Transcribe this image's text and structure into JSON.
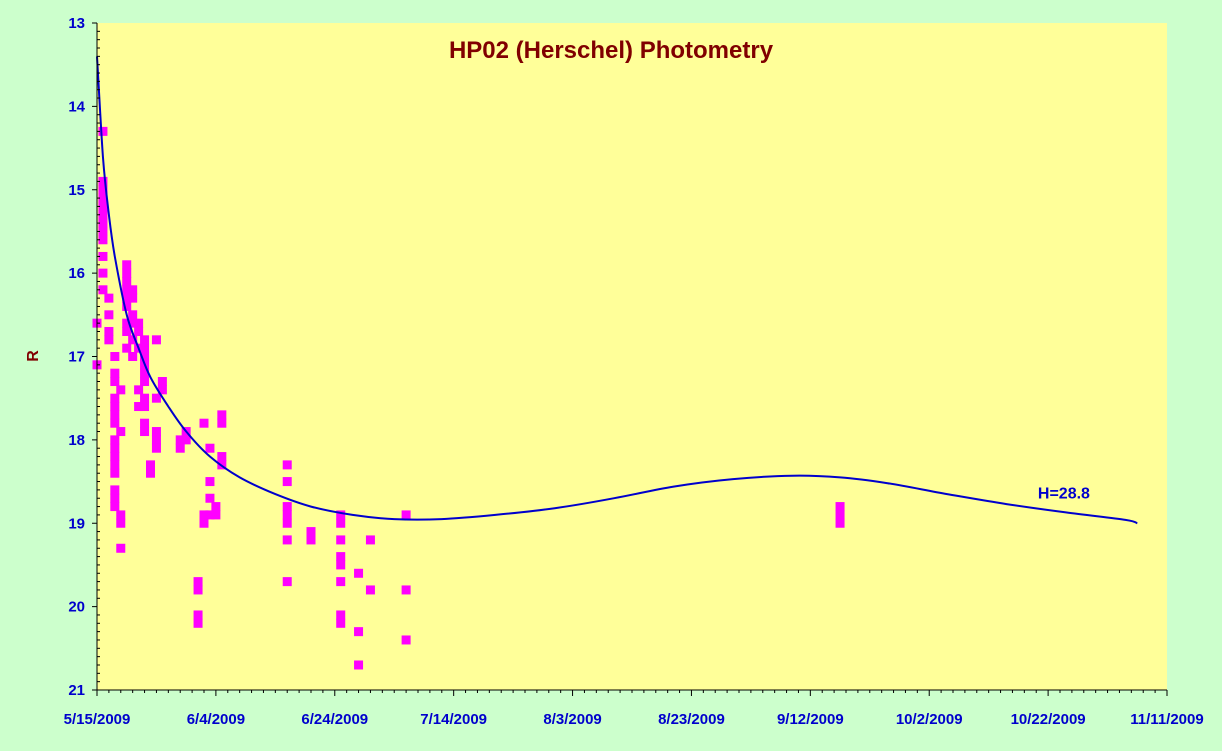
{
  "chart_data": {
    "type": "scatter",
    "title": "HP02 (Herschel) Photometry",
    "ylabel": "R",
    "xlabel": "",
    "x_type": "date",
    "xlim": [
      "2009-05-15",
      "2009-11-11"
    ],
    "x_tick_step_days": 20,
    "x_ticks": [
      "5/15/2009",
      "6/4/2009",
      "6/24/2009",
      "7/14/2009",
      "8/3/2009",
      "8/23/2009",
      "9/12/2009",
      "10/2/2009",
      "10/22/2009",
      "11/11/2009"
    ],
    "ylim": [
      13,
      21
    ],
    "y_inverted": true,
    "y_ticks": [
      "13",
      "14",
      "15",
      "16",
      "17",
      "18",
      "19",
      "20",
      "21"
    ],
    "grid": false,
    "colors": {
      "background": "#ccffcc",
      "plot_area": "#ffff99",
      "points": "#ff00ff",
      "fit_line": "#0000cc",
      "title": "#800000",
      "ylabel": "#800000",
      "tick_labels": "#0000cc"
    },
    "series": [
      {
        "type": "scatter",
        "points": [
          {
            "x": "2009-05-15",
            "y": 16.6
          },
          {
            "x": "2009-05-15",
            "y": 17.1
          },
          {
            "x": "2009-05-16",
            "y": 14.3
          },
          {
            "x": "2009-05-16",
            "y": 14.9
          },
          {
            "x": "2009-05-16",
            "y": 15.0
          },
          {
            "x": "2009-05-16",
            "y": 15.1
          },
          {
            "x": "2009-05-16",
            "y": 15.2
          },
          {
            "x": "2009-05-16",
            "y": 15.3
          },
          {
            "x": "2009-05-16",
            "y": 15.4
          },
          {
            "x": "2009-05-16",
            "y": 15.5
          },
          {
            "x": "2009-05-16",
            "y": 15.6
          },
          {
            "x": "2009-05-16",
            "y": 15.8
          },
          {
            "x": "2009-05-16",
            "y": 16.0
          },
          {
            "x": "2009-05-16",
            "y": 16.2
          },
          {
            "x": "2009-05-17",
            "y": 16.3
          },
          {
            "x": "2009-05-17",
            "y": 16.5
          },
          {
            "x": "2009-05-17",
            "y": 16.7
          },
          {
            "x": "2009-05-17",
            "y": 16.8
          },
          {
            "x": "2009-05-18",
            "y": 17.0
          },
          {
            "x": "2009-05-18",
            "y": 17.2
          },
          {
            "x": "2009-05-18",
            "y": 17.3
          },
          {
            "x": "2009-05-18",
            "y": 17.5
          },
          {
            "x": "2009-05-18",
            "y": 17.6
          },
          {
            "x": "2009-05-18",
            "y": 17.7
          },
          {
            "x": "2009-05-18",
            "y": 17.8
          },
          {
            "x": "2009-05-18",
            "y": 18.0
          },
          {
            "x": "2009-05-18",
            "y": 18.1
          },
          {
            "x": "2009-05-18",
            "y": 18.2
          },
          {
            "x": "2009-05-18",
            "y": 18.3
          },
          {
            "x": "2009-05-18",
            "y": 18.4
          },
          {
            "x": "2009-05-18",
            "y": 18.6
          },
          {
            "x": "2009-05-18",
            "y": 18.7
          },
          {
            "x": "2009-05-18",
            "y": 18.8
          },
          {
            "x": "2009-05-19",
            "y": 18.9
          },
          {
            "x": "2009-05-19",
            "y": 19.0
          },
          {
            "x": "2009-05-19",
            "y": 19.3
          },
          {
            "x": "2009-05-19",
            "y": 17.4
          },
          {
            "x": "2009-05-19",
            "y": 17.9
          },
          {
            "x": "2009-05-20",
            "y": 15.9
          },
          {
            "x": "2009-05-20",
            "y": 16.0
          },
          {
            "x": "2009-05-20",
            "y": 16.1
          },
          {
            "x": "2009-05-20",
            "y": 16.2
          },
          {
            "x": "2009-05-20",
            "y": 16.3
          },
          {
            "x": "2009-05-20",
            "y": 16.4
          },
          {
            "x": "2009-05-20",
            "y": 16.6
          },
          {
            "x": "2009-05-20",
            "y": 16.7
          },
          {
            "x": "2009-05-20",
            "y": 16.9
          },
          {
            "x": "2009-05-21",
            "y": 16.2
          },
          {
            "x": "2009-05-21",
            "y": 16.3
          },
          {
            "x": "2009-05-21",
            "y": 16.5
          },
          {
            "x": "2009-05-21",
            "y": 16.6
          },
          {
            "x": "2009-05-21",
            "y": 16.8
          },
          {
            "x": "2009-05-21",
            "y": 17.0
          },
          {
            "x": "2009-05-22",
            "y": 16.6
          },
          {
            "x": "2009-05-22",
            "y": 16.7
          },
          {
            "x": "2009-05-22",
            "y": 16.9
          },
          {
            "x": "2009-05-22",
            "y": 17.4
          },
          {
            "x": "2009-05-22",
            "y": 17.6
          },
          {
            "x": "2009-05-23",
            "y": 16.8
          },
          {
            "x": "2009-05-23",
            "y": 16.9
          },
          {
            "x": "2009-05-23",
            "y": 17.0
          },
          {
            "x": "2009-05-23",
            "y": 17.1
          },
          {
            "x": "2009-05-23",
            "y": 17.2
          },
          {
            "x": "2009-05-23",
            "y": 17.3
          },
          {
            "x": "2009-05-23",
            "y": 17.5
          },
          {
            "x": "2009-05-23",
            "y": 17.6
          },
          {
            "x": "2009-05-23",
            "y": 17.8
          },
          {
            "x": "2009-05-23",
            "y": 17.9
          },
          {
            "x": "2009-05-24",
            "y": 18.3
          },
          {
            "x": "2009-05-24",
            "y": 18.4
          },
          {
            "x": "2009-05-25",
            "y": 16.8
          },
          {
            "x": "2009-05-25",
            "y": 17.5
          },
          {
            "x": "2009-05-25",
            "y": 17.9
          },
          {
            "x": "2009-05-25",
            "y": 18.0
          },
          {
            "x": "2009-05-25",
            "y": 18.1
          },
          {
            "x": "2009-05-26",
            "y": 17.3
          },
          {
            "x": "2009-05-26",
            "y": 17.4
          },
          {
            "x": "2009-05-29",
            "y": 18.0
          },
          {
            "x": "2009-05-29",
            "y": 18.1
          },
          {
            "x": "2009-05-30",
            "y": 17.9
          },
          {
            "x": "2009-05-30",
            "y": 18.0
          },
          {
            "x": "2009-06-01",
            "y": 19.7
          },
          {
            "x": "2009-06-01",
            "y": 19.8
          },
          {
            "x": "2009-06-01",
            "y": 20.1
          },
          {
            "x": "2009-06-01",
            "y": 20.2
          },
          {
            "x": "2009-06-02",
            "y": 17.8
          },
          {
            "x": "2009-06-02",
            "y": 18.9
          },
          {
            "x": "2009-06-02",
            "y": 19.0
          },
          {
            "x": "2009-06-03",
            "y": 18.1
          },
          {
            "x": "2009-06-03",
            "y": 18.5
          },
          {
            "x": "2009-06-03",
            "y": 18.7
          },
          {
            "x": "2009-06-03",
            "y": 18.9
          },
          {
            "x": "2009-06-04",
            "y": 18.8
          },
          {
            "x": "2009-06-04",
            "y": 18.9
          },
          {
            "x": "2009-06-05",
            "y": 17.7
          },
          {
            "x": "2009-06-05",
            "y": 17.8
          },
          {
            "x": "2009-06-05",
            "y": 18.2
          },
          {
            "x": "2009-06-05",
            "y": 18.3
          },
          {
            "x": "2009-06-16",
            "y": 18.3
          },
          {
            "x": "2009-06-16",
            "y": 18.5
          },
          {
            "x": "2009-06-16",
            "y": 18.8
          },
          {
            "x": "2009-06-16",
            "y": 18.9
          },
          {
            "x": "2009-06-16",
            "y": 19.0
          },
          {
            "x": "2009-06-16",
            "y": 19.2
          },
          {
            "x": "2009-06-16",
            "y": 19.7
          },
          {
            "x": "2009-06-20",
            "y": 19.1
          },
          {
            "x": "2009-06-20",
            "y": 19.2
          },
          {
            "x": "2009-06-25",
            "y": 18.9
          },
          {
            "x": "2009-06-25",
            "y": 19.0
          },
          {
            "x": "2009-06-25",
            "y": 19.2
          },
          {
            "x": "2009-06-25",
            "y": 19.4
          },
          {
            "x": "2009-06-25",
            "y": 19.5
          },
          {
            "x": "2009-06-25",
            "y": 19.7
          },
          {
            "x": "2009-06-25",
            "y": 20.1
          },
          {
            "x": "2009-06-25",
            "y": 20.2
          },
          {
            "x": "2009-06-28",
            "y": 19.6
          },
          {
            "x": "2009-06-28",
            "y": 20.3
          },
          {
            "x": "2009-06-28",
            "y": 20.7
          },
          {
            "x": "2009-06-30",
            "y": 19.2
          },
          {
            "x": "2009-06-30",
            "y": 19.8
          },
          {
            "x": "2009-07-06",
            "y": 18.9
          },
          {
            "x": "2009-07-06",
            "y": 19.8
          },
          {
            "x": "2009-07-06",
            "y": 20.4
          },
          {
            "x": "2009-09-17",
            "y": 18.8
          },
          {
            "x": "2009-09-17",
            "y": 18.9
          },
          {
            "x": "2009-09-17",
            "y": 19.0
          }
        ]
      },
      {
        "type": "line",
        "label": "H=28.8",
        "points": [
          {
            "x": "2009-05-15",
            "y": 13.4
          },
          {
            "x": "2009-05-16",
            "y": 14.6
          },
          {
            "x": "2009-05-17",
            "y": 15.3
          },
          {
            "x": "2009-05-18",
            "y": 15.8
          },
          {
            "x": "2009-05-20",
            "y": 16.5
          },
          {
            "x": "2009-05-22",
            "y": 16.9
          },
          {
            "x": "2009-05-24",
            "y": 17.25
          },
          {
            "x": "2009-05-27",
            "y": 17.6
          },
          {
            "x": "2009-05-30",
            "y": 17.9
          },
          {
            "x": "2009-06-03",
            "y": 18.2
          },
          {
            "x": "2009-06-08",
            "y": 18.45
          },
          {
            "x": "2009-06-14",
            "y": 18.65
          },
          {
            "x": "2009-06-20",
            "y": 18.8
          },
          {
            "x": "2009-06-27",
            "y": 18.9
          },
          {
            "x": "2009-07-04",
            "y": 18.95
          },
          {
            "x": "2009-07-12",
            "y": 18.95
          },
          {
            "x": "2009-07-21",
            "y": 18.9
          },
          {
            "x": "2009-07-31",
            "y": 18.82
          },
          {
            "x": "2009-08-10",
            "y": 18.7
          },
          {
            "x": "2009-08-20",
            "y": 18.56
          },
          {
            "x": "2009-08-30",
            "y": 18.47
          },
          {
            "x": "2009-09-09",
            "y": 18.43
          },
          {
            "x": "2009-09-17",
            "y": 18.45
          },
          {
            "x": "2009-09-25",
            "y": 18.52
          },
          {
            "x": "2009-10-05",
            "y": 18.65
          },
          {
            "x": "2009-10-15",
            "y": 18.77
          },
          {
            "x": "2009-10-25",
            "y": 18.87
          },
          {
            "x": "2009-11-04",
            "y": 18.96
          },
          {
            "x": "2009-11-06",
            "y": 19.0
          }
        ]
      }
    ]
  }
}
